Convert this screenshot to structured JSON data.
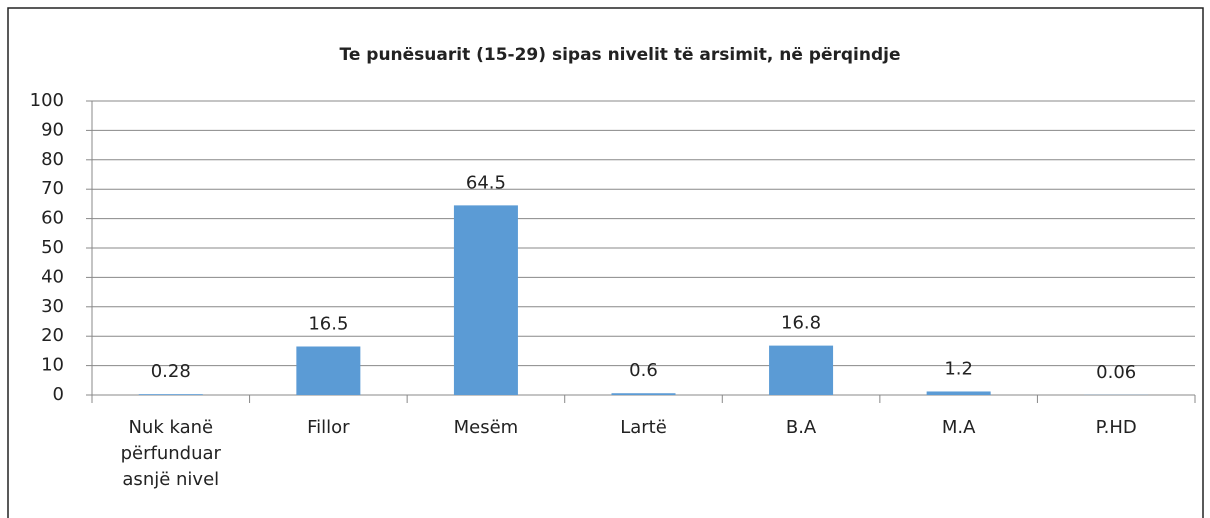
{
  "chart_data": {
    "type": "bar",
    "title": "Te punësuarit (15-29) sipas nivelit të arsimit, në përqindje",
    "categories": [
      "Nuk kanë përfunduar asnjë nivel",
      "Fillor",
      "Mesëm",
      "Lartë",
      "B.A",
      "M.A",
      "P.HD"
    ],
    "values": [
      0.28,
      16.5,
      64.5,
      0.6,
      16.8,
      1.2,
      0.06
    ],
    "color": "#5b9bd5",
    "ylim": [
      0,
      100
    ],
    "yticks": [
      0,
      10,
      20,
      30,
      40,
      50,
      60,
      70,
      80,
      90,
      100
    ],
    "grid": true
  }
}
